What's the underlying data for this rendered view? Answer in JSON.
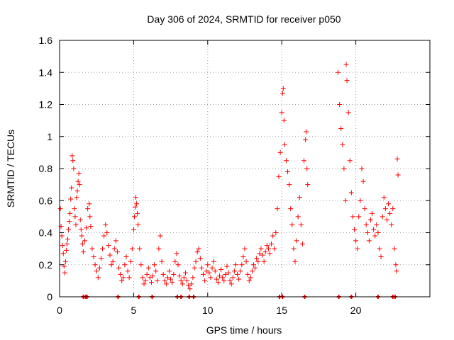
{
  "chart_data": {
    "type": "scatter",
    "title": "Day 306 of 2024, SRMTID for receiver p050",
    "xlabel": "GPS time / hours",
    "ylabel": "SRMTID / TECUs",
    "xlim": [
      0,
      25
    ],
    "ylim": [
      0,
      1.6
    ],
    "x_ticks": [
      0,
      5,
      10,
      15,
      20
    ],
    "x_tick_labels": [
      "0",
      "5",
      "10",
      "15",
      "20"
    ],
    "y_ticks": [
      0,
      0.2,
      0.4,
      0.6,
      0.8,
      1.0,
      1.2,
      1.4,
      1.6
    ],
    "y_tick_labels": [
      "0",
      "0.2",
      "0.4",
      "0.6",
      "0.8",
      "1",
      "1.2",
      "1.4",
      "1.6"
    ],
    "grid": true,
    "marker": "+",
    "series_color": "#ff0000",
    "points": [
      [
        0.05,
        0.55
      ],
      [
        0.1,
        0.44
      ],
      [
        0.15,
        0.38
      ],
      [
        0.2,
        0.32
      ],
      [
        0.25,
        0.27
      ],
      [
        0.3,
        0.19
      ],
      [
        0.35,
        0.15
      ],
      [
        0.4,
        0.22
      ],
      [
        0.45,
        0.29
      ],
      [
        0.5,
        0.33
      ],
      [
        0.55,
        0.36
      ],
      [
        0.6,
        0.42
      ],
      [
        0.65,
        0.47
      ],
      [
        0.7,
        0.52
      ],
      [
        0.75,
        0.61
      ],
      [
        0.8,
        0.68
      ],
      [
        0.85,
        0.88
      ],
      [
        0.9,
        0.85
      ],
      [
        0.95,
        0.8
      ],
      [
        1.0,
        0.55
      ],
      [
        1.05,
        0.5
      ],
      [
        1.1,
        0.45
      ],
      [
        1.15,
        0.62
      ],
      [
        1.2,
        0.66
      ],
      [
        1.25,
        0.72
      ],
      [
        1.3,
        0.77
      ],
      [
        1.35,
        0.7
      ],
      [
        1.4,
        0.48
      ],
      [
        1.45,
        0.42
      ],
      [
        1.5,
        0.38
      ],
      [
        1.55,
        0.33
      ],
      [
        1.6,
        0.28
      ],
      [
        1.7,
        0.35
      ],
      [
        1.8,
        0.43
      ],
      [
        1.9,
        0.55
      ],
      [
        2.0,
        0.58
      ],
      [
        2.05,
        0.5
      ],
      [
        2.1,
        0.44
      ],
      [
        2.2,
        0.3
      ],
      [
        2.3,
        0.25
      ],
      [
        2.4,
        0.2
      ],
      [
        2.5,
        0.16
      ],
      [
        2.6,
        0.12
      ],
      [
        2.7,
        0.18
      ],
      [
        2.8,
        0.24
      ],
      [
        2.9,
        0.3
      ],
      [
        3.0,
        0.38
      ],
      [
        3.1,
        0.45
      ],
      [
        3.2,
        0.4
      ],
      [
        3.3,
        0.32
      ],
      [
        3.4,
        0.26
      ],
      [
        3.5,
        0.2
      ],
      [
        3.6,
        0.22
      ],
      [
        3.7,
        0.3
      ],
      [
        3.8,
        0.35
      ],
      [
        3.9,
        0.28
      ],
      [
        4.0,
        0.18
      ],
      [
        4.1,
        0.14
      ],
      [
        4.2,
        0.1
      ],
      [
        4.3,
        0.12
      ],
      [
        4.4,
        0.2
      ],
      [
        4.5,
        0.25
      ],
      [
        4.6,
        0.16
      ],
      [
        4.7,
        0.12
      ],
      [
        4.8,
        0.22
      ],
      [
        4.9,
        0.3
      ],
      [
        5.0,
        0.42
      ],
      [
        5.05,
        0.5
      ],
      [
        5.1,
        0.56
      ],
      [
        5.15,
        0.62
      ],
      [
        5.2,
        0.58
      ],
      [
        5.25,
        0.52
      ],
      [
        5.3,
        0.45
      ],
      [
        5.4,
        0.3
      ],
      [
        5.5,
        0.2
      ],
      [
        5.6,
        0.12
      ],
      [
        5.7,
        0.08
      ],
      [
        5.8,
        0.1
      ],
      [
        5.9,
        0.14
      ],
      [
        6.0,
        0.18
      ],
      [
        6.1,
        0.12
      ],
      [
        6.2,
        0.09
      ],
      [
        6.3,
        0.13
      ],
      [
        6.4,
        0.2
      ],
      [
        6.5,
        0.16
      ],
      [
        6.6,
        0.1
      ],
      [
        6.7,
        0.3
      ],
      [
        6.8,
        0.38
      ],
      [
        6.9,
        0.22
      ],
      [
        7.0,
        0.14
      ],
      [
        7.1,
        0.1
      ],
      [
        7.2,
        0.08
      ],
      [
        7.3,
        0.12
      ],
      [
        7.4,
        0.16
      ],
      [
        7.5,
        0.11
      ],
      [
        7.6,
        0.09
      ],
      [
        7.7,
        0.14
      ],
      [
        7.8,
        0.22
      ],
      [
        7.9,
        0.27
      ],
      [
        8.0,
        0.2
      ],
      [
        8.1,
        0.13
      ],
      [
        8.2,
        0.1
      ],
      [
        8.3,
        0.08
      ],
      [
        8.4,
        0.12
      ],
      [
        8.5,
        0.15
      ],
      [
        8.6,
        0.1
      ],
      [
        8.7,
        0.07
      ],
      [
        8.8,
        0.05
      ],
      [
        8.9,
        0.08
      ],
      [
        9.0,
        0.12
      ],
      [
        9.1,
        0.18
      ],
      [
        9.2,
        0.22
      ],
      [
        9.3,
        0.28
      ],
      [
        9.4,
        0.3
      ],
      [
        9.5,
        0.24
      ],
      [
        9.6,
        0.18
      ],
      [
        9.7,
        0.14
      ],
      [
        9.8,
        0.1
      ],
      [
        9.9,
        0.16
      ],
      [
        10.0,
        0.2
      ],
      [
        10.1,
        0.15
      ],
      [
        10.2,
        0.12
      ],
      [
        10.3,
        0.18
      ],
      [
        10.4,
        0.22
      ],
      [
        10.5,
        0.16
      ],
      [
        10.6,
        0.11
      ],
      [
        10.7,
        0.09
      ],
      [
        10.8,
        0.13
      ],
      [
        10.9,
        0.17
      ],
      [
        11.0,
        0.12
      ],
      [
        11.1,
        0.1
      ],
      [
        11.2,
        0.14
      ],
      [
        11.3,
        0.19
      ],
      [
        11.4,
        0.15
      ],
      [
        11.5,
        0.1
      ],
      [
        11.6,
        0.08
      ],
      [
        11.7,
        0.12
      ],
      [
        11.8,
        0.16
      ],
      [
        11.9,
        0.2
      ],
      [
        12.0,
        0.14
      ],
      [
        12.1,
        0.11
      ],
      [
        12.2,
        0.16
      ],
      [
        12.3,
        0.2
      ],
      [
        12.4,
        0.25
      ],
      [
        12.5,
        0.3
      ],
      [
        12.6,
        0.22
      ],
      [
        12.7,
        0.14
      ],
      [
        12.8,
        0.1
      ],
      [
        12.9,
        0.12
      ],
      [
        13.0,
        0.16
      ],
      [
        13.1,
        0.2
      ],
      [
        13.2,
        0.18
      ],
      [
        13.3,
        0.24
      ],
      [
        13.4,
        0.22
      ],
      [
        13.5,
        0.27
      ],
      [
        13.6,
        0.3
      ],
      [
        13.7,
        0.26
      ],
      [
        13.8,
        0.22
      ],
      [
        13.9,
        0.28
      ],
      [
        14.0,
        0.32
      ],
      [
        14.1,
        0.3
      ],
      [
        14.2,
        0.27
      ],
      [
        14.3,
        0.33
      ],
      [
        14.4,
        0.38
      ],
      [
        14.5,
        0.3
      ],
      [
        14.6,
        0.4
      ],
      [
        14.7,
        0.55
      ],
      [
        14.8,
        0.75
      ],
      [
        14.9,
        0.9
      ],
      [
        15.0,
        1.15
      ],
      [
        15.05,
        1.27
      ],
      [
        15.1,
        1.3
      ],
      [
        15.15,
        1.1
      ],
      [
        15.2,
        0.95
      ],
      [
        15.3,
        0.85
      ],
      [
        15.4,
        0.78
      ],
      [
        15.5,
        0.7
      ],
      [
        15.6,
        0.55
      ],
      [
        15.7,
        0.45
      ],
      [
        15.8,
        0.3
      ],
      [
        15.9,
        0.22
      ],
      [
        16.0,
        0.35
      ],
      [
        16.1,
        0.5
      ],
      [
        16.2,
        0.62
      ],
      [
        16.3,
        0.45
      ],
      [
        16.4,
        0.33
      ],
      [
        16.5,
        0.85
      ],
      [
        16.6,
        0.98
      ],
      [
        16.65,
        1.03
      ],
      [
        16.7,
        0.8
      ],
      [
        16.75,
        0.7
      ],
      [
        18.8,
        1.4
      ],
      [
        18.9,
        1.2
      ],
      [
        19.0,
        1.05
      ],
      [
        19.1,
        0.95
      ],
      [
        19.2,
        0.8
      ],
      [
        19.3,
        0.6
      ],
      [
        19.35,
        1.45
      ],
      [
        19.4,
        1.35
      ],
      [
        19.5,
        1.15
      ],
      [
        19.6,
        0.85
      ],
      [
        19.7,
        0.65
      ],
      [
        19.8,
        0.5
      ],
      [
        19.9,
        0.42
      ],
      [
        20.0,
        0.35
      ],
      [
        20.1,
        0.3
      ],
      [
        20.2,
        0.5
      ],
      [
        20.3,
        0.6
      ],
      [
        20.4,
        0.8
      ],
      [
        20.5,
        0.72
      ],
      [
        20.6,
        0.55
      ],
      [
        20.7,
        0.45
      ],
      [
        20.8,
        0.4
      ],
      [
        20.9,
        0.35
      ],
      [
        21.0,
        0.48
      ],
      [
        21.1,
        0.52
      ],
      [
        21.2,
        0.42
      ],
      [
        21.3,
        0.38
      ],
      [
        21.4,
        0.45
      ],
      [
        21.5,
        0.4
      ],
      [
        21.6,
        0.3
      ],
      [
        21.7,
        0.25
      ],
      [
        21.8,
        0.5
      ],
      [
        21.9,
        0.62
      ],
      [
        22.0,
        0.55
      ],
      [
        22.1,
        0.48
      ],
      [
        22.2,
        0.58
      ],
      [
        22.3,
        0.52
      ],
      [
        22.4,
        0.45
      ],
      [
        22.5,
        0.55
      ],
      [
        22.6,
        0.3
      ],
      [
        22.7,
        0.2
      ],
      [
        22.75,
        0.16
      ],
      [
        22.8,
        0.86
      ],
      [
        22.85,
        0.76
      ]
    ],
    "zero_markers_x": [
      1.6,
      1.75,
      1.85,
      3.95,
      5.35,
      6.25,
      7.95,
      8.2,
      8.75,
      9.05,
      14.85,
      15.05,
      16.55,
      18.85,
      19.7,
      21.5,
      22.5,
      22.65
    ]
  }
}
